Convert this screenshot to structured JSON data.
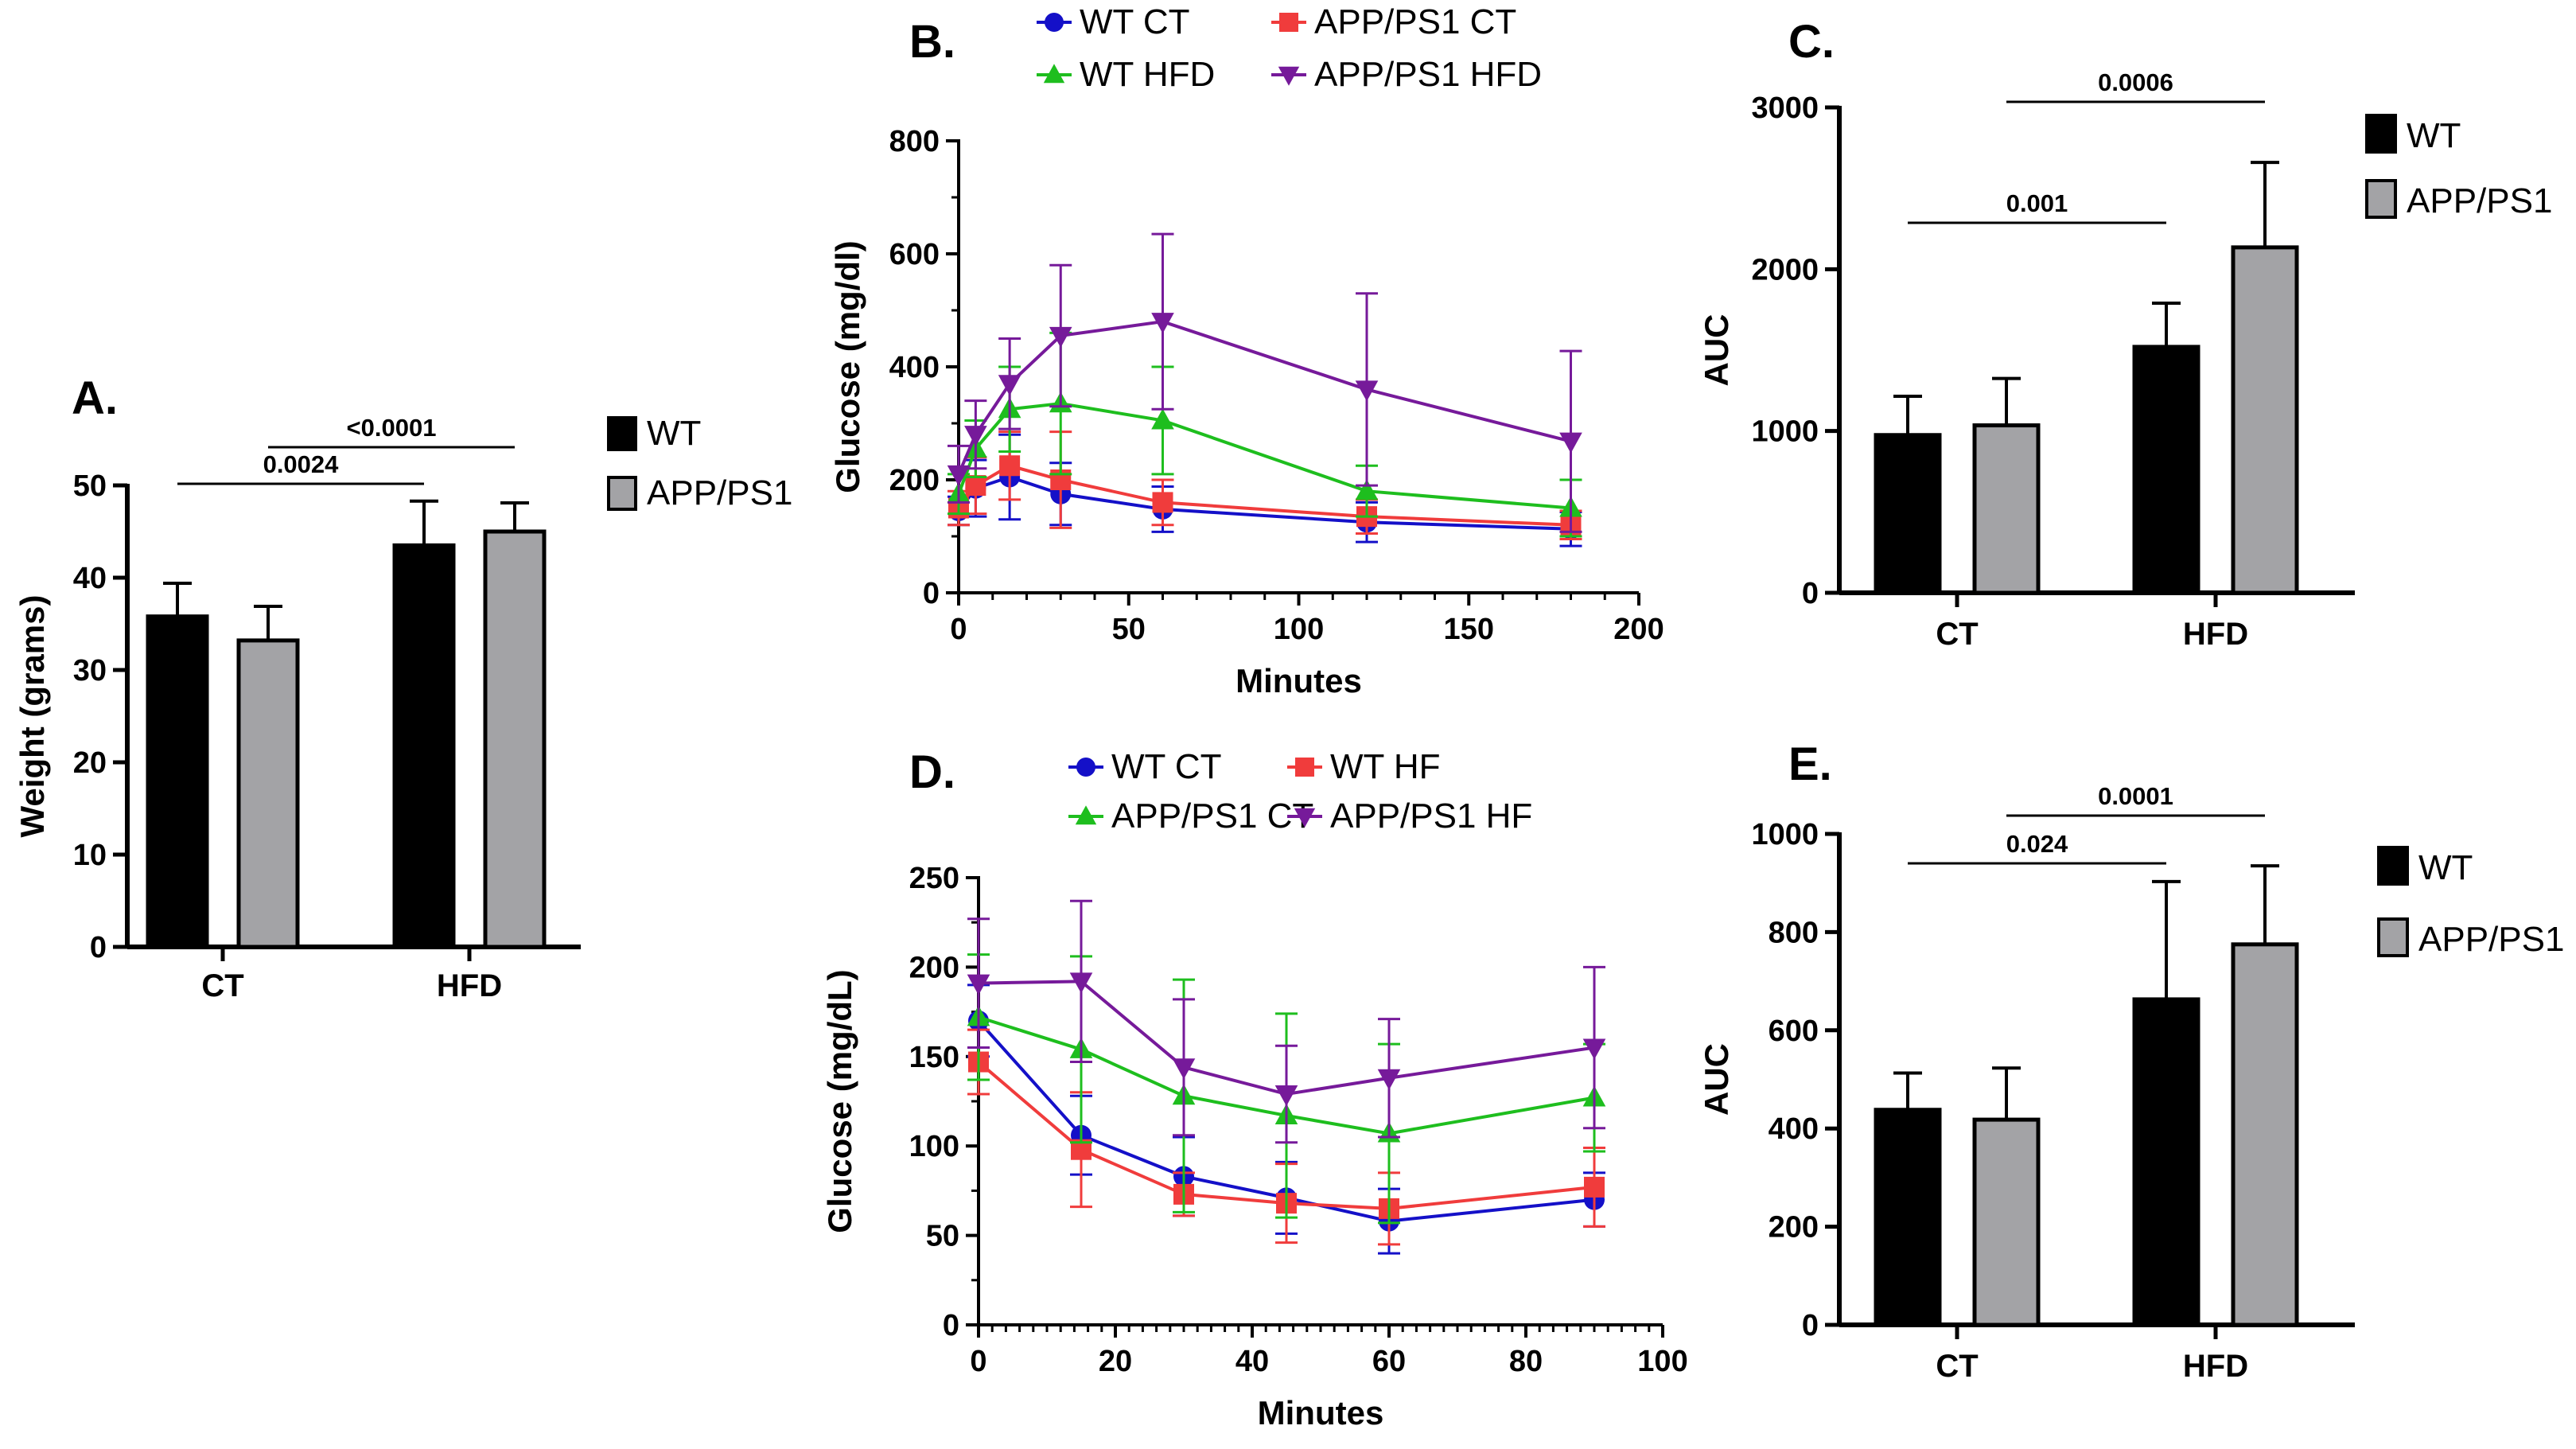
{
  "colors": {
    "wt_bar": "#000000",
    "app_bar": "#a3a3a6",
    "blue": "#1410c8",
    "red": "#f03c3c",
    "green": "#1ebe1e",
    "purple": "#761a9a"
  },
  "chart_data": [
    {
      "id": "A",
      "panel_label": "A.",
      "type": "bar",
      "categories": [
        "CT",
        "HFD"
      ],
      "series": [
        {
          "name": "WT",
          "values": [
            35.8,
            43.5
          ],
          "errors": [
            3.6,
            4.8
          ]
        },
        {
          "name": "APP/PS1",
          "values": [
            33.2,
            45.0
          ],
          "errors": [
            3.7,
            3.1
          ]
        }
      ],
      "ylabel": "Weight (grams)",
      "ylim": [
        0,
        50
      ],
      "yticks": [
        "0",
        "10",
        "20",
        "30",
        "40",
        "50"
      ],
      "comparisons": [
        {
          "label": "0.0024",
          "from": "CT WT",
          "to": "HFD WT"
        },
        {
          "label": "<0.0001",
          "from": "CT APP/PS1",
          "to": "HFD APP/PS1"
        }
      ]
    },
    {
      "id": "B",
      "panel_label": "B.",
      "type": "line",
      "xlabel": "Minutes",
      "ylabel": "Glucose (mg/dl)",
      "xlim": [
        0,
        200
      ],
      "ylim": [
        0,
        800
      ],
      "xticks": [
        "0",
        "50",
        "100",
        "150",
        "200"
      ],
      "yticks": [
        "0",
        "200",
        "400",
        "600",
        "800"
      ],
      "x": [
        0,
        5,
        15,
        30,
        60,
        120,
        180
      ],
      "series": [
        {
          "name": "WT CT",
          "marker": "circle",
          "values": [
            145,
            185,
            205,
            175,
            148,
            125,
            113
          ],
          "errors": [
            25,
            50,
            75,
            55,
            40,
            35,
            30
          ]
        },
        {
          "name": "APP/PS1 CT",
          "marker": "square",
          "values": [
            150,
            190,
            225,
            200,
            160,
            135,
            120
          ],
          "errors": [
            30,
            50,
            60,
            85,
            40,
            30,
            25
          ]
        },
        {
          "name": "WT HFD",
          "marker": "triangle-up",
          "values": [
            175,
            255,
            325,
            335,
            305,
            180,
            150
          ],
          "errors": [
            35,
            50,
            75,
            125,
            95,
            45,
            50
          ]
        },
        {
          "name": "APP/PS1 HFD",
          "marker": "triangle-down",
          "values": [
            210,
            280,
            370,
            455,
            480,
            360,
            268
          ],
          "errors": [
            50,
            60,
            80,
            125,
            155,
            170,
            160
          ]
        }
      ]
    },
    {
      "id": "C",
      "panel_label": "C.",
      "type": "bar",
      "categories": [
        "CT",
        "HFD"
      ],
      "series": [
        {
          "name": "WT",
          "values": [
            975,
            1520
          ],
          "errors": [
            240,
            270
          ]
        },
        {
          "name": "APP/PS1",
          "values": [
            1035,
            2135
          ],
          "errors": [
            290,
            525
          ]
        }
      ],
      "ylabel": "AUC",
      "ylim": [
        0,
        3000
      ],
      "yticks": [
        "0",
        "1000",
        "2000",
        "3000"
      ],
      "comparisons": [
        {
          "label": "0.001",
          "from": "CT WT",
          "to": "HFD WT"
        },
        {
          "label": "0.0006",
          "from": "CT APP/PS1",
          "to": "HFD APP/PS1"
        }
      ]
    },
    {
      "id": "D",
      "panel_label": "D.",
      "type": "line",
      "xlabel": "Minutes",
      "ylabel": "Glucose (mg/dL)",
      "xlim": [
        0,
        100
      ],
      "ylim": [
        0,
        250
      ],
      "xticks": [
        "0",
        "20",
        "40",
        "60",
        "80",
        "100"
      ],
      "yticks": [
        "0",
        "50",
        "100",
        "150",
        "200",
        "250"
      ],
      "x": [
        0,
        15,
        30,
        45,
        60,
        90
      ],
      "series": [
        {
          "name": "WT CT",
          "marker": "circle",
          "values": [
            170,
            106,
            83,
            71,
            58,
            70
          ],
          "errors": [
            20,
            22,
            22,
            20,
            18,
            15
          ]
        },
        {
          "name": "WT HF",
          "marker": "square",
          "values": [
            147,
            98,
            73,
            68,
            65,
            77
          ],
          "errors": [
            18,
            32,
            12,
            22,
            20,
            22
          ]
        },
        {
          "name": "APP/PS1 CT",
          "marker": "triangle-up",
          "values": [
            172,
            154,
            128,
            117,
            107,
            127
          ],
          "errors": [
            35,
            52,
            65,
            57,
            50,
            30
          ]
        },
        {
          "name": "APP/PS1 HF",
          "marker": "triangle-down",
          "values": [
            191,
            192,
            144,
            129,
            138,
            155
          ],
          "errors": [
            36,
            45,
            38,
            27,
            33,
            45
          ]
        }
      ]
    },
    {
      "id": "E",
      "panel_label": "E.",
      "type": "bar",
      "categories": [
        "CT",
        "HFD"
      ],
      "series": [
        {
          "name": "WT",
          "values": [
            438,
            663
          ],
          "errors": [
            75,
            240
          ]
        },
        {
          "name": "APP/PS1",
          "values": [
            418,
            775
          ],
          "errors": [
            105,
            160
          ]
        }
      ],
      "ylabel": "AUC",
      "ylim": [
        0,
        1000
      ],
      "yticks": [
        "0",
        "200",
        "400",
        "600",
        "800",
        "1000"
      ],
      "comparisons": [
        {
          "label": "0.024",
          "from": "CT WT",
          "to": "HFD WT"
        },
        {
          "label": "0.0001",
          "from": "CT APP/PS1",
          "to": "HFD APP/PS1"
        }
      ]
    }
  ]
}
